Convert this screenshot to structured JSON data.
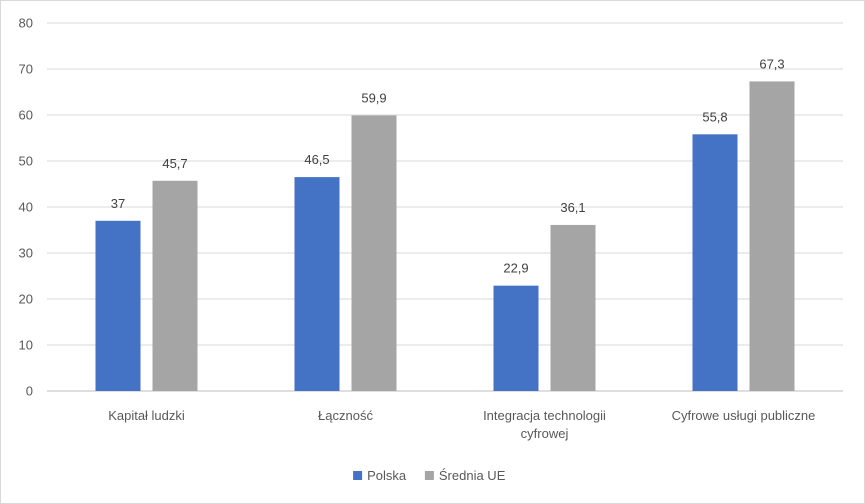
{
  "chart_data": {
    "type": "bar",
    "categories": [
      [
        "Kapitał ludzki"
      ],
      [
        "Łączność"
      ],
      [
        "Integracja technologii",
        "cyfrowej"
      ],
      [
        "Cyfrowe usługi publiczne"
      ]
    ],
    "series": [
      {
        "name": "Polska",
        "values": [
          37,
          46.5,
          22.9,
          55.8
        ],
        "labels": [
          "37",
          "46,5",
          "22,9",
          "55,8"
        ],
        "color": "#4472c4"
      },
      {
        "name": "Średnia UE",
        "values": [
          45.7,
          59.9,
          36.1,
          67.3
        ],
        "labels": [
          "45,7",
          "59,9",
          "36,1",
          "67,3"
        ],
        "color": "#a5a5a5"
      }
    ],
    "ylim": [
      0,
      80
    ],
    "yticks": [
      0,
      10,
      20,
      30,
      40,
      50,
      60,
      70,
      80
    ],
    "grid": true,
    "legend_position": "bottom",
    "title": "",
    "xlabel": "",
    "ylabel": ""
  }
}
